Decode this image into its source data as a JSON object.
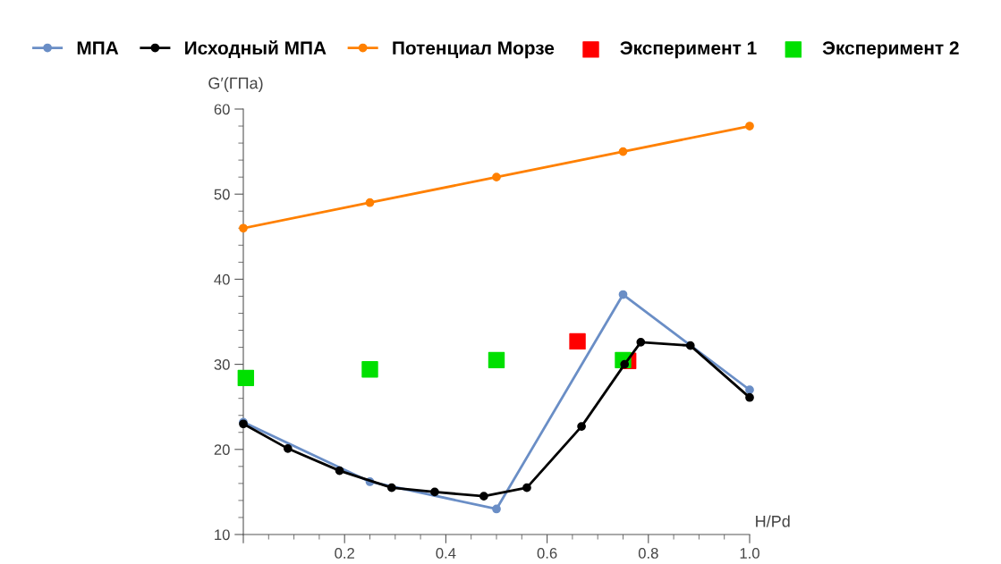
{
  "chart_data": {
    "type": "line",
    "xlabel": "H/Pd",
    "ylabel": "G′(ГПа)",
    "xlim": [
      0,
      1.0
    ],
    "ylim": [
      10,
      60
    ],
    "xticks": [
      {
        "value": 0,
        "label": null
      },
      0.2,
      0.4,
      0.6,
      0.8,
      {
        "value": 1.0,
        "label": "1.0"
      }
    ],
    "yticks": [
      10,
      20,
      30,
      40,
      50,
      60
    ],
    "grid": false,
    "legend": "top",
    "series": [
      {
        "name": "МПА",
        "marker": "circle",
        "color": "#6a8ec6",
        "x": [
          0,
          0.25,
          0.5,
          0.75,
          1.0
        ],
        "values": [
          23.2,
          16.2,
          13,
          38.2,
          27
        ]
      },
      {
        "name": "Исходный МПА",
        "marker": "circle",
        "color": "#000000",
        "x": [
          0,
          0.088,
          0.19,
          0.293,
          0.378,
          0.475,
          0.56,
          0.668,
          0.753,
          0.785,
          0.883,
          1.0
        ],
        "values": [
          23,
          20.1,
          17.5,
          15.5,
          15.0,
          14.5,
          15.5,
          22.7,
          30,
          32.6,
          32.2,
          26.1
        ]
      },
      {
        "name": "Потенциал Морзе",
        "marker": "circle",
        "color": "#ff8000",
        "x": [
          0,
          0.25,
          0.5,
          0.75,
          1.0
        ],
        "values": [
          46,
          49,
          52,
          55,
          58
        ]
      },
      {
        "name": "Эксперимент 1",
        "type": "scatter",
        "marker": "square",
        "color": "#ff0000",
        "x": [
          0.66,
          0.76
        ],
        "values": [
          32.7,
          30.4
        ]
      },
      {
        "name": "Эксперимент 2",
        "type": "scatter",
        "marker": "square",
        "color": "#00e000",
        "x": [
          0.005,
          0.25,
          0.5,
          0.75
        ],
        "values": [
          28.4,
          29.4,
          30.5,
          30.5
        ]
      }
    ]
  }
}
